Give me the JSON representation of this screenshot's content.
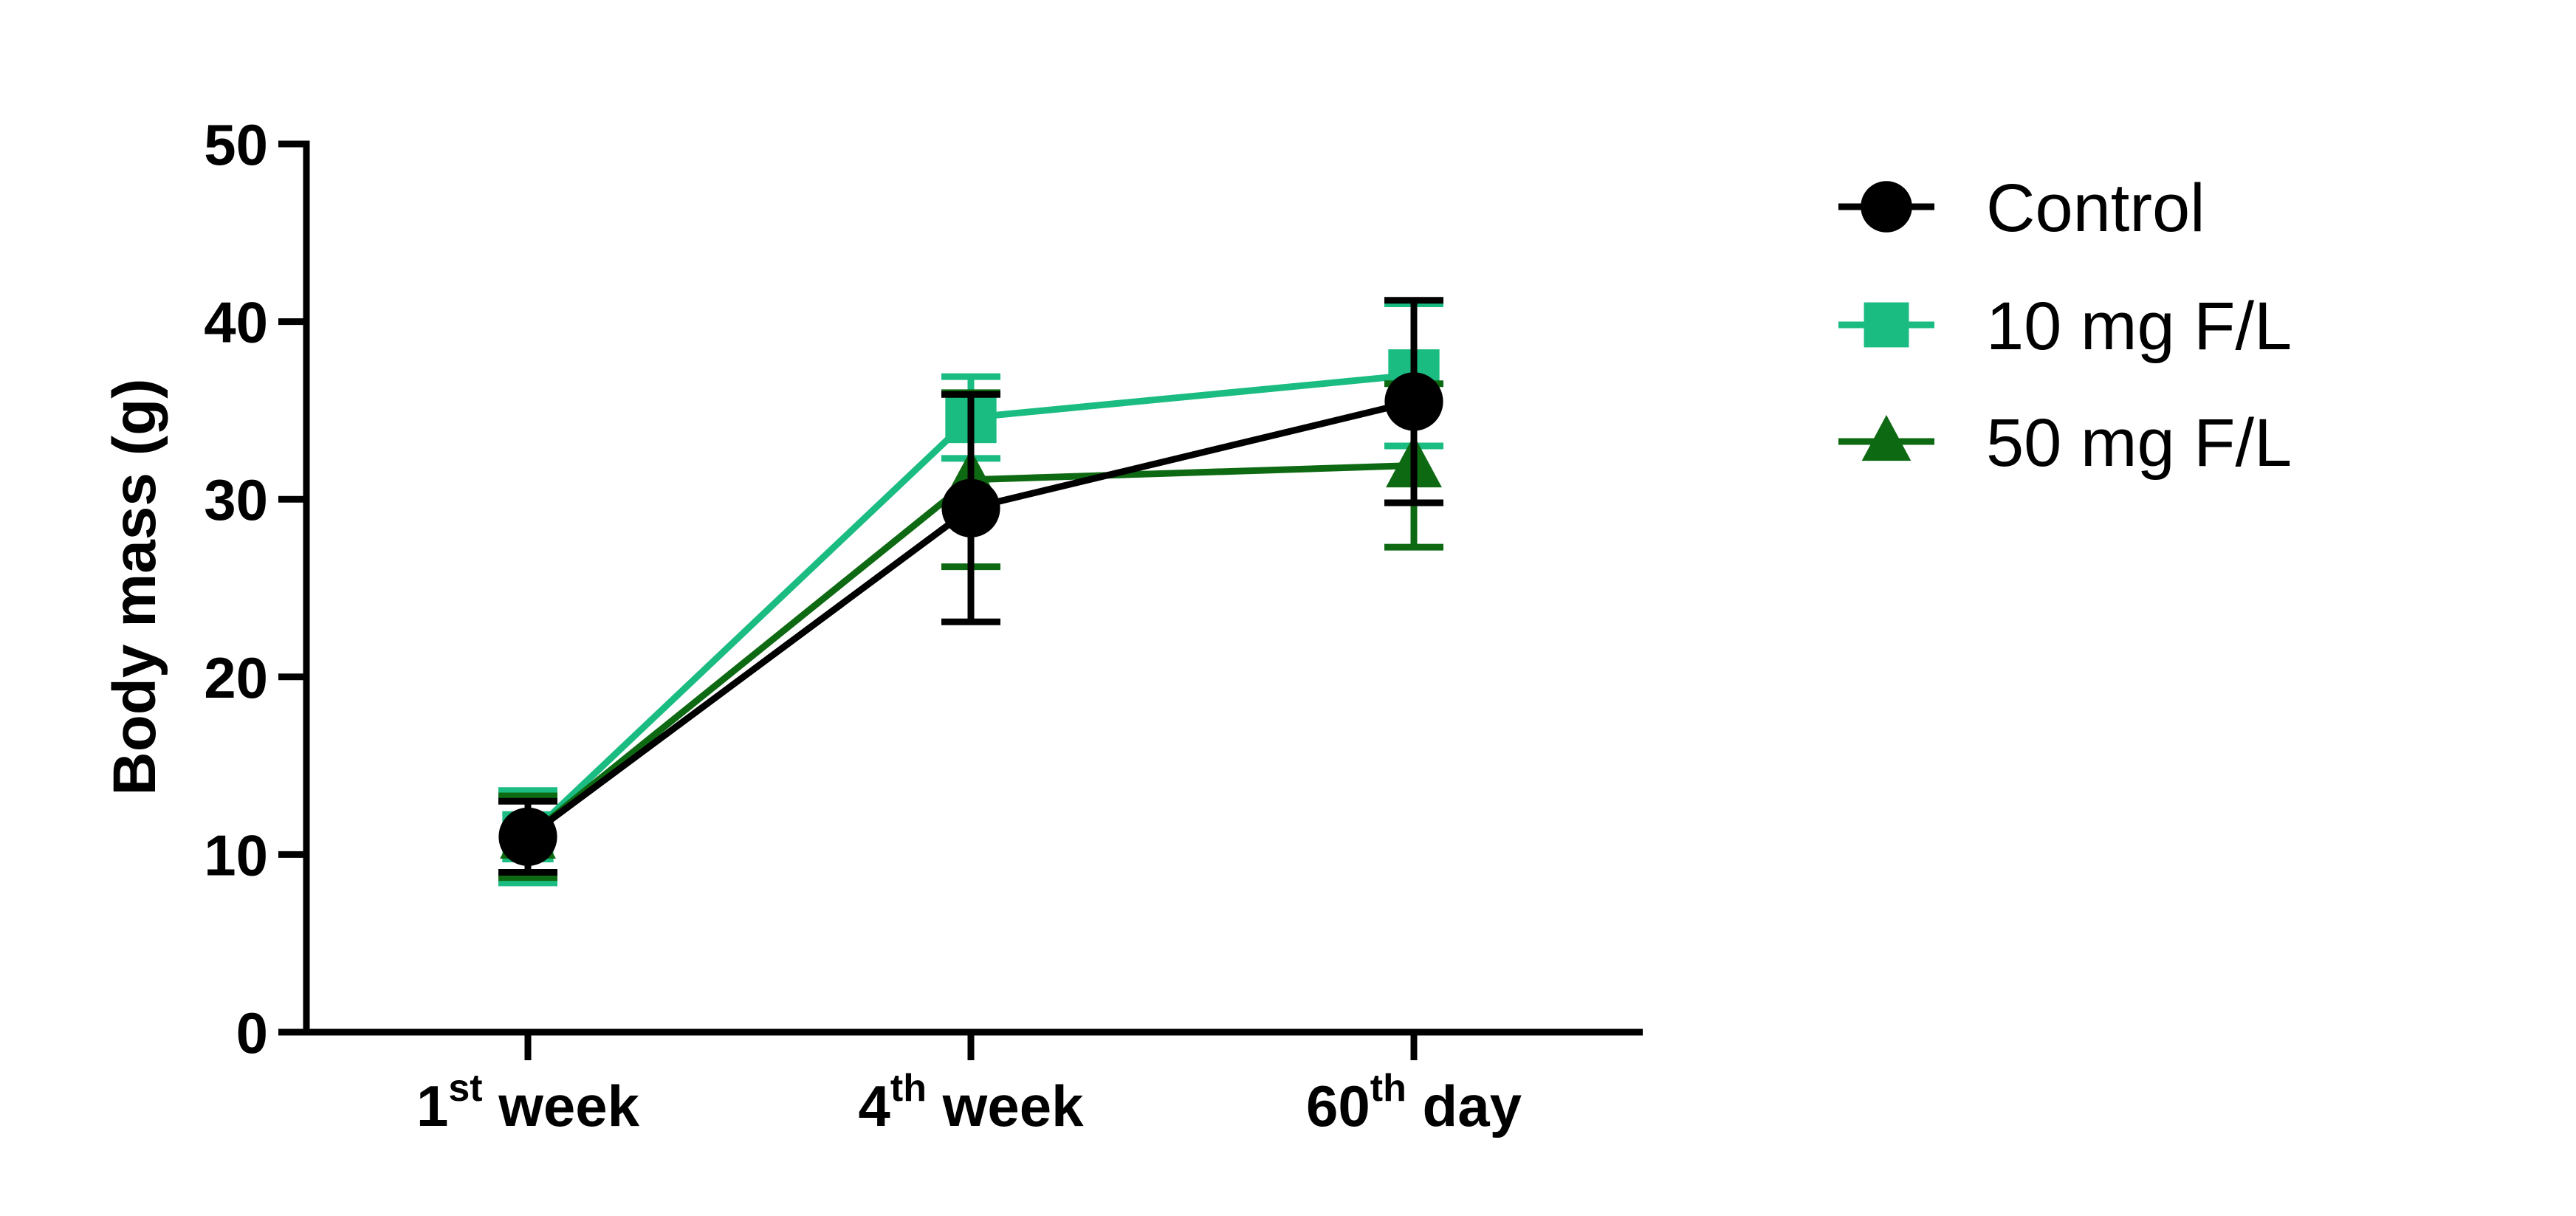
{
  "chart_data": {
    "type": "line",
    "title": "",
    "xlabel": "",
    "ylabel": "Body mass (g)",
    "categories": [
      {
        "base": "1",
        "sup": "st",
        "rest": " week"
      },
      {
        "base": "4",
        "sup": "th",
        "rest": " week"
      },
      {
        "base": "60",
        "sup": "th",
        "rest": " day"
      }
    ],
    "ylim": [
      0,
      50
    ],
    "yticks": [
      0,
      10,
      20,
      30,
      40,
      50
    ],
    "grid": false,
    "legend_position": "top-right",
    "series": [
      {
        "name": "10 mg F/L",
        "color": "#1ABC82",
        "marker": "square",
        "values": [
          11.0,
          34.6,
          37.0
        ],
        "errors": [
          2.6,
          2.3,
          4.0
        ]
      },
      {
        "name": "50 mg F/L",
        "color": "#0E6A12",
        "marker": "triangle",
        "values": [
          11.0,
          31.1,
          31.9
        ],
        "errors": [
          2.3,
          4.9,
          4.6
        ]
      },
      {
        "name": "Control",
        "color": "#000000",
        "marker": "circle",
        "values": [
          11.0,
          29.5,
          35.5
        ],
        "errors": [
          2.0,
          6.4,
          5.7
        ]
      }
    ],
    "legend_order": [
      "Control",
      "10 mg F/L",
      "50 mg F/L"
    ]
  }
}
